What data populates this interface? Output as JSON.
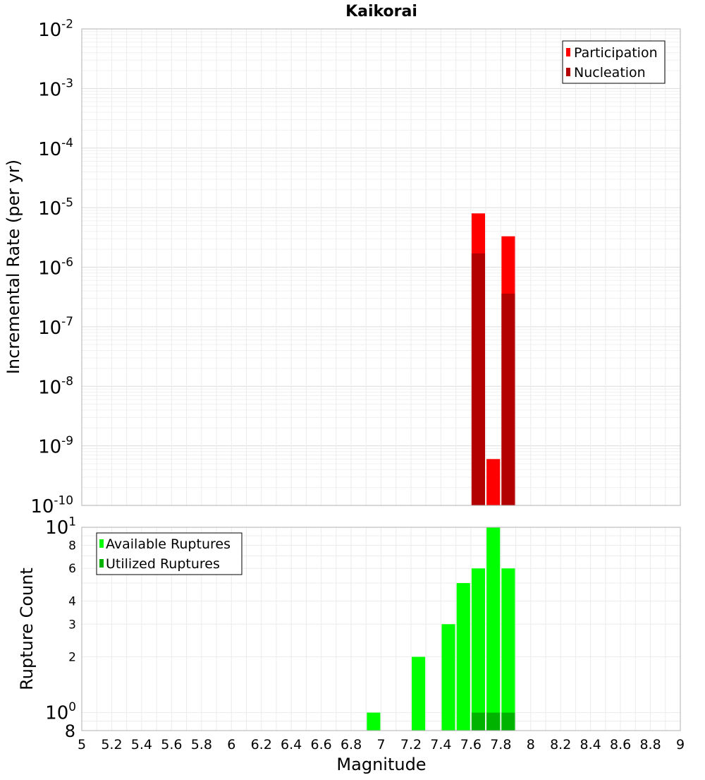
{
  "chart_data": [
    {
      "type": "bar",
      "title": "Kaikorai",
      "xlabel": "",
      "ylabel": "Incremental Rate (per yr)",
      "yscale": "log",
      "xlim": [
        5,
        9
      ],
      "ylim": [
        1e-10,
        0.01
      ],
      "y_ticks": [
        {
          "base": "10",
          "exp": "-2"
        },
        {
          "base": "10",
          "exp": "-3"
        },
        {
          "base": "10",
          "exp": "-4"
        },
        {
          "base": "10",
          "exp": "-5"
        },
        {
          "base": "10",
          "exp": "-6"
        },
        {
          "base": "10",
          "exp": "-7"
        },
        {
          "base": "10",
          "exp": "-8"
        },
        {
          "base": "10",
          "exp": "-9"
        },
        {
          "base": "10",
          "exp": "-10"
        }
      ],
      "grid": true,
      "legend_position": "top-right",
      "bar_width": 0.09,
      "series": [
        {
          "name": "Participation",
          "color": "#ff0000",
          "x": [
            7.65,
            7.75,
            7.85
          ],
          "values": [
            8e-06,
            6e-10,
            3.3e-06
          ]
        },
        {
          "name": "Nucleation",
          "color": "#b30000",
          "x": [
            7.65,
            7.75,
            7.85
          ],
          "values": [
            1.7e-06,
            0,
            3.6e-07
          ]
        }
      ]
    },
    {
      "type": "bar",
      "xlabel": "Magnitude",
      "ylabel": "Rupture Count",
      "yscale": "log",
      "xlim": [
        5,
        9
      ],
      "ylim": [
        0.8,
        10
      ],
      "x_ticks": [
        "5",
        "5.2",
        "5.4",
        "5.6",
        "5.8",
        "6",
        "6.2",
        "6.4",
        "6.6",
        "6.8",
        "7",
        "7.2",
        "7.4",
        "7.6",
        "7.8",
        "8",
        "8.2",
        "8.4",
        "8.6",
        "8.8",
        "9"
      ],
      "y_ticks_major": [
        {
          "value": 10,
          "base": "10",
          "exp": "1"
        },
        {
          "value": 1,
          "base": "10",
          "exp": "0"
        }
      ],
      "y_ticks_minor": [
        {
          "value": 8,
          "label": "8"
        },
        {
          "value": 6,
          "label": "6"
        },
        {
          "value": 4,
          "label": "4"
        },
        {
          "value": 3,
          "label": "3"
        },
        {
          "value": 2,
          "label": "2"
        }
      ],
      "y_bottom_label": "8",
      "grid": true,
      "legend_position": "top-left",
      "bar_width": 0.09,
      "series": [
        {
          "name": "Available Ruptures",
          "color": "#00ff00",
          "x": [
            6.95,
            7.25,
            7.45,
            7.55,
            7.65,
            7.75,
            7.85
          ],
          "values": [
            1,
            2,
            3,
            5,
            6,
            10,
            6
          ]
        },
        {
          "name": "Utilized Ruptures",
          "color": "#00b300",
          "x": [
            7.65,
            7.75,
            7.85
          ],
          "values": [
            1,
            1,
            1
          ]
        }
      ]
    }
  ]
}
